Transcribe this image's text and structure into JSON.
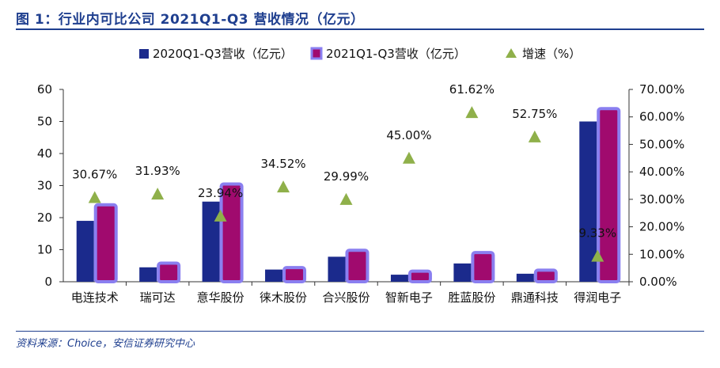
{
  "title": "图 1：行业内可比公司 2021Q1-Q3 营收情况（亿元）",
  "source": "资料来源：Choice，安信证券研究中心",
  "colors": {
    "series_2020": "#1b2a8c",
    "series_2021_fill": "#a00a6e",
    "series_2021_edge": "#8a7ff0",
    "growth": "#8fb04a",
    "title": "#1f3f8f"
  },
  "chart_data": {
    "type": "bar",
    "categories": [
      "电连技术",
      "瑞可达",
      "意华股份",
      "徕木股份",
      "合兴股份",
      "智新电子",
      "胜蓝股份",
      "鼎通科技",
      "得润电子"
    ],
    "series": [
      {
        "name": "2020Q1-Q3营收（亿元）",
        "values": [
          19,
          4.5,
          25,
          3.8,
          7.8,
          2.2,
          5.7,
          2.5,
          50
        ]
      },
      {
        "name": "2021Q1-Q3营收（亿元）",
        "values": [
          24,
          5.8,
          30.5,
          4.4,
          9.8,
          3.3,
          9.1,
          3.6,
          54
        ]
      },
      {
        "name": "增速（%）",
        "axis": "right",
        "values": [
          30.67,
          31.93,
          23.94,
          34.52,
          29.99,
          45.0,
          61.62,
          52.75,
          9.33
        ],
        "labels": [
          "30.67%",
          "31.93%",
          "23.94%",
          "34.52%",
          "29.99%",
          "45.00%",
          "61.62%",
          "52.75%",
          "9.33%"
        ]
      }
    ],
    "ylim": [
      0,
      60
    ],
    "yticks": [
      "0",
      "10",
      "20",
      "30",
      "40",
      "50",
      "60"
    ],
    "y2lim": [
      0,
      70
    ],
    "y2ticks": [
      "0.00%",
      "10.00%",
      "20.00%",
      "30.00%",
      "40.00%",
      "50.00%",
      "60.00%",
      "70.00%"
    ],
    "legend_position": "top",
    "grid": false
  }
}
